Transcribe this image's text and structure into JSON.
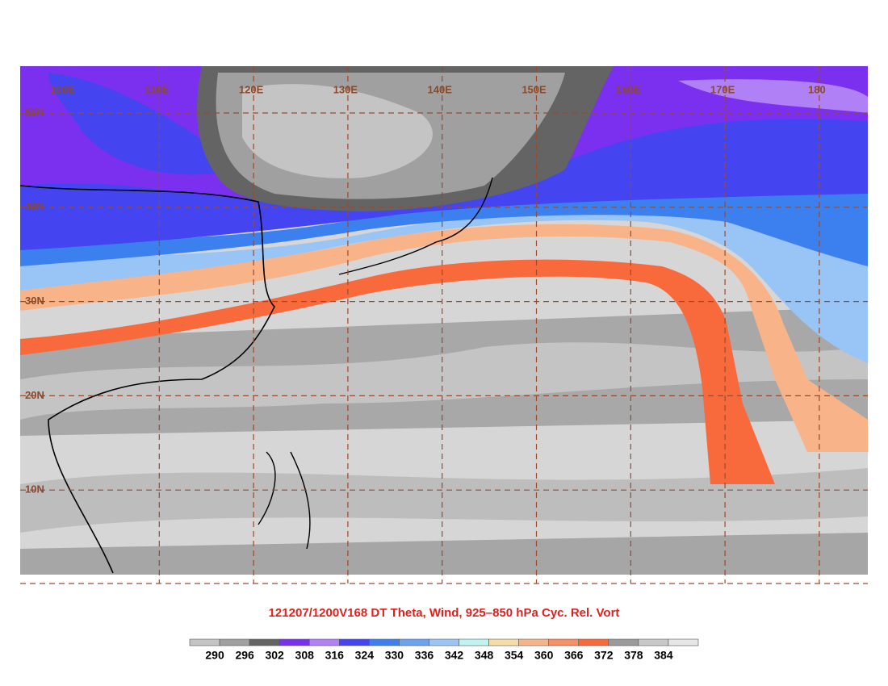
{
  "map": {
    "lon_labels": [
      "100E",
      "110E",
      "120E",
      "130E",
      "140E",
      "150E",
      "160E",
      "170E",
      "180"
    ],
    "lat_labels": [
      "50N",
      "40N",
      "30N",
      "20N",
      "10N"
    ]
  },
  "title": "121207/1200V168 DT Theta, Wind, 925–850 hPa Cyc. Rel. Vort",
  "colorbar": {
    "labels": [
      "290",
      "296",
      "302",
      "308",
      "316",
      "324",
      "330",
      "336",
      "342",
      "348",
      "354",
      "360",
      "366",
      "372",
      "378",
      "384"
    ],
    "colors": [
      "#c4c4c4",
      "#a0a0a0",
      "#646464",
      "#7a30ee",
      "#b080f6",
      "#4444f0",
      "#3c80f0",
      "#6aa4f0",
      "#98c4f6",
      "#c0f4f0",
      "#f8dca8",
      "#f8b488",
      "#f89064",
      "#f86a3c",
      "#9a9a9a",
      "#c8c8c8",
      "#e6e6e6"
    ]
  }
}
